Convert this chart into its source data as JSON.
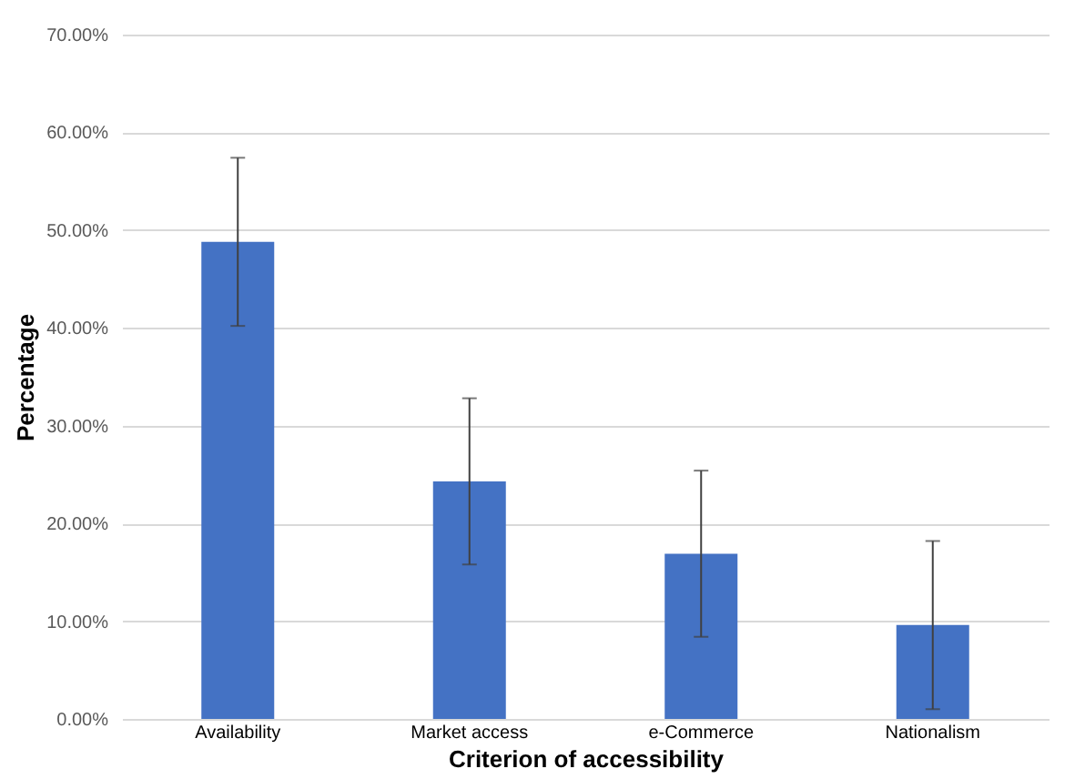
{
  "chart_data": {
    "type": "bar",
    "xlabel": "Criterion of accessibility",
    "ylabel": "Percentage",
    "categories": [
      "Availability",
      "Market access",
      "e-Commerce",
      "Nationalism"
    ],
    "values": [
      48.8,
      24.3,
      16.9,
      9.6
    ],
    "errors": [
      8.6,
      8.5,
      8.5,
      8.6
    ],
    "color": "#4472c4",
    "ylim": [
      0,
      70
    ],
    "yticks": [
      {
        "value": 0,
        "label": "0.00%"
      },
      {
        "value": 10,
        "label": "10.00%"
      },
      {
        "value": 20,
        "label": "20.00%"
      },
      {
        "value": 30,
        "label": "30.00%"
      },
      {
        "value": 40,
        "label": "40.00%"
      },
      {
        "value": 50,
        "label": "50.00%"
      },
      {
        "value": 60,
        "label": "60.00%"
      },
      {
        "value": 70,
        "label": "70.00%"
      }
    ],
    "grid": "y"
  }
}
